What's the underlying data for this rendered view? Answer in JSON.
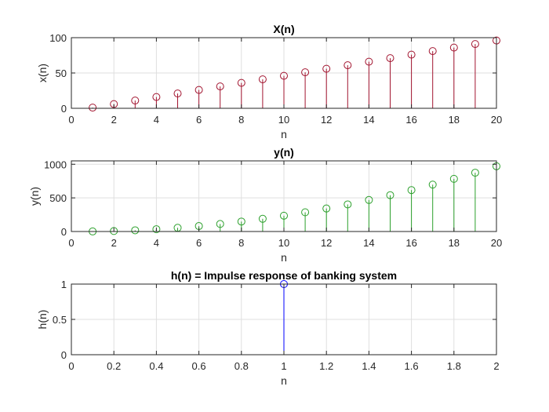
{
  "chart_data": [
    {
      "type": "stem",
      "title": "X(n)",
      "xlabel": "n",
      "ylabel": "x(n)",
      "xlim": [
        0,
        20
      ],
      "ylim": [
        0,
        100
      ],
      "xticks": [
        "0",
        "2",
        "4",
        "6",
        "8",
        "10",
        "12",
        "14",
        "16",
        "18",
        "20"
      ],
      "yticks": [
        "0",
        "50",
        "100"
      ],
      "grid": true,
      "color": "#a2142f",
      "x": [
        1,
        2,
        3,
        4,
        5,
        6,
        7,
        8,
        9,
        10,
        11,
        12,
        13,
        14,
        15,
        16,
        17,
        18,
        19,
        20
      ],
      "y": [
        1,
        6,
        11,
        16,
        21,
        26,
        31,
        36,
        41,
        46,
        51,
        56,
        61,
        66,
        71,
        76,
        81,
        86,
        91,
        96
      ]
    },
    {
      "type": "stem",
      "title": "y(n)",
      "xlabel": "n",
      "ylabel": "y(n)",
      "xlim": [
        0,
        20
      ],
      "ylim": [
        0,
        1050
      ],
      "xticks": [
        "0",
        "2",
        "4",
        "6",
        "8",
        "10",
        "12",
        "14",
        "16",
        "18",
        "20"
      ],
      "yticks": [
        "0",
        "500",
        "1000"
      ],
      "grid": true,
      "color": "#2ca02c",
      "x": [
        1,
        2,
        3,
        4,
        5,
        6,
        7,
        8,
        9,
        10,
        11,
        12,
        13,
        14,
        15,
        16,
        17,
        18,
        19,
        20
      ],
      "y": [
        1,
        7,
        18,
        34,
        55,
        81,
        112,
        148,
        189,
        235,
        286,
        342,
        403,
        469,
        540,
        616,
        697,
        783,
        874,
        970
      ]
    },
    {
      "type": "stem",
      "title": "h(n) = Impulse response of banking system",
      "xlabel": "n",
      "ylabel": "h(n)",
      "xlim": [
        0,
        2
      ],
      "ylim": [
        0,
        1
      ],
      "xticks": [
        "0",
        "0.2",
        "0.4",
        "0.6",
        "0.8",
        "1",
        "1.2",
        "1.4",
        "1.6",
        "1.8",
        "2"
      ],
      "yticks": [
        "0",
        "0.5",
        "1"
      ],
      "grid": true,
      "color": "#0000ff",
      "x": [
        1
      ],
      "y": [
        1
      ]
    }
  ]
}
